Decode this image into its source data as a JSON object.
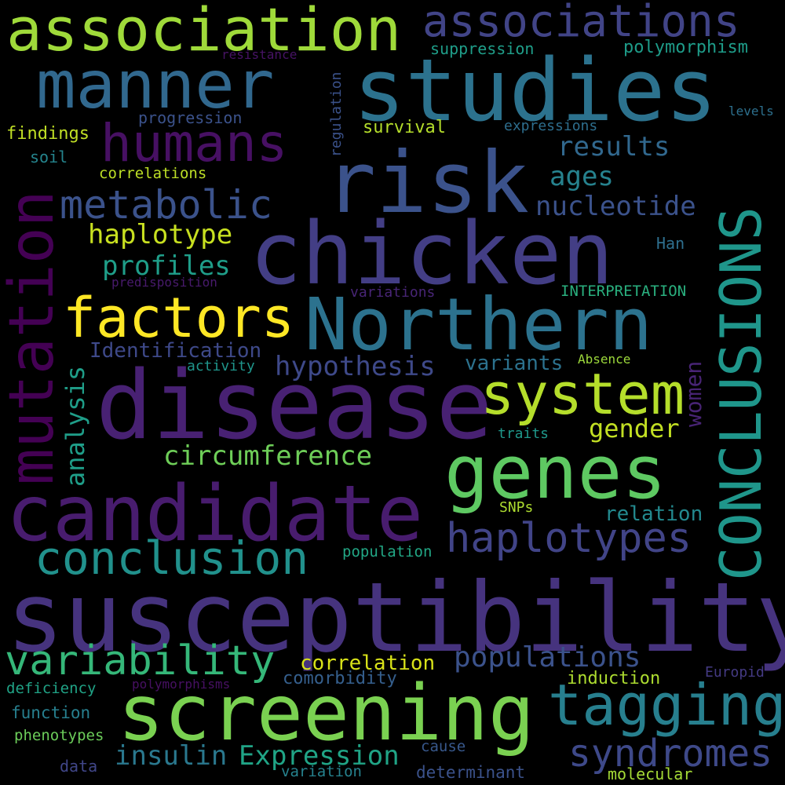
{
  "background_color": "#000000",
  "words": [
    {
      "text": "susceptibility",
      "color": "#46337e"
    },
    {
      "text": "disease",
      "color": "#482173"
    },
    {
      "text": "chicken",
      "color": "#433e85"
    },
    {
      "text": "studies",
      "color": "#2c728e"
    },
    {
      "text": "candidate",
      "color": "#481c6e"
    },
    {
      "text": "screening",
      "color": "#7ad151"
    },
    {
      "text": "risk",
      "color": "#3b528b"
    },
    {
      "text": "manner",
      "color": "#31688e"
    },
    {
      "text": "Northern",
      "color": "#2c728e"
    },
    {
      "text": "association",
      "color": "#9fda3a"
    },
    {
      "text": "genes",
      "color": "#5ec962"
    },
    {
      "text": "CONCLUSIONS",
      "color": "#1f968b"
    },
    {
      "text": "mutation",
      "color": "#440154"
    },
    {
      "text": "factors",
      "color": "#fde725"
    },
    {
      "text": "system",
      "color": "#b5de2b"
    },
    {
      "text": "tagging",
      "color": "#277f8e"
    },
    {
      "text": "humans",
      "color": "#471063"
    },
    {
      "text": "associations",
      "color": "#414487"
    },
    {
      "text": "conclusion",
      "color": "#21918c"
    },
    {
      "text": "haplotypes",
      "color": "#414487"
    },
    {
      "text": "variability",
      "color": "#35b779"
    },
    {
      "text": "syndromes",
      "color": "#3e4989"
    },
    {
      "text": "metabolic",
      "color": "#3b528b"
    },
    {
      "text": "hypothesis",
      "color": "#3e4989"
    },
    {
      "text": "populations",
      "color": "#3b528b"
    },
    {
      "text": "insulin",
      "color": "#2a788e"
    },
    {
      "text": "Expression",
      "color": "#20a486"
    },
    {
      "text": "circumference",
      "color": "#6ece58"
    },
    {
      "text": "haplotype",
      "color": "#c8e020"
    },
    {
      "text": "profiles",
      "color": "#1f9e89"
    },
    {
      "text": "results",
      "color": "#31688e"
    },
    {
      "text": "nucleotide",
      "color": "#3b528b"
    },
    {
      "text": "ages",
      "color": "#26828e"
    },
    {
      "text": "gender",
      "color": "#c2df23"
    },
    {
      "text": "analysis",
      "color": "#1f9e89"
    },
    {
      "text": "women",
      "color": "#482475"
    },
    {
      "text": "Identification",
      "color": "#3e4989"
    },
    {
      "text": "correlation",
      "color": "#d8e219"
    },
    {
      "text": "variants",
      "color": "#2c728e"
    },
    {
      "text": "relation",
      "color": "#23898e"
    },
    {
      "text": "suppression",
      "color": "#1f9e89"
    },
    {
      "text": "polymorphism",
      "color": "#1e9c89"
    },
    {
      "text": "survival",
      "color": "#b5de2b"
    },
    {
      "text": "regulation",
      "color": "#3b528b"
    },
    {
      "text": "findings",
      "color": "#c0df25"
    },
    {
      "text": "progression",
      "color": "#3b528b"
    },
    {
      "text": "expressions",
      "color": "#2e6e8e"
    },
    {
      "text": "correlations",
      "color": "#bddf26"
    },
    {
      "text": "soil",
      "color": "#25858e"
    },
    {
      "text": "resistance",
      "color": "#471365"
    },
    {
      "text": "levels",
      "color": "#2d708e"
    },
    {
      "text": "Han",
      "color": "#2e6f8e"
    },
    {
      "text": "predisposition",
      "color": "#481a6c"
    },
    {
      "text": "variations",
      "color": "#482576"
    },
    {
      "text": "INTERPRETATION",
      "color": "#2ab07f"
    },
    {
      "text": "activity",
      "color": "#1f958b"
    },
    {
      "text": "Absence",
      "color": "#9dd93b"
    },
    {
      "text": "traits",
      "color": "#1f988b"
    },
    {
      "text": "SNPs",
      "color": "#addc30"
    },
    {
      "text": "population",
      "color": "#22a785"
    },
    {
      "text": "comorbidity",
      "color": "#355f8d"
    },
    {
      "text": "induction",
      "color": "#addc30"
    },
    {
      "text": "Europid",
      "color": "#443a83"
    },
    {
      "text": "deficiency",
      "color": "#20a386"
    },
    {
      "text": "polymorphisms",
      "color": "#471063"
    },
    {
      "text": "function",
      "color": "#277f8e"
    },
    {
      "text": "phenotypes",
      "color": "#6ccd5a"
    },
    {
      "text": "data",
      "color": "#404688"
    },
    {
      "text": "cause",
      "color": "#38588c"
    },
    {
      "text": "determinant",
      "color": "#3b528b"
    },
    {
      "text": "variation",
      "color": "#26828e"
    },
    {
      "text": "molecular",
      "color": "#a5db36"
    }
  ]
}
